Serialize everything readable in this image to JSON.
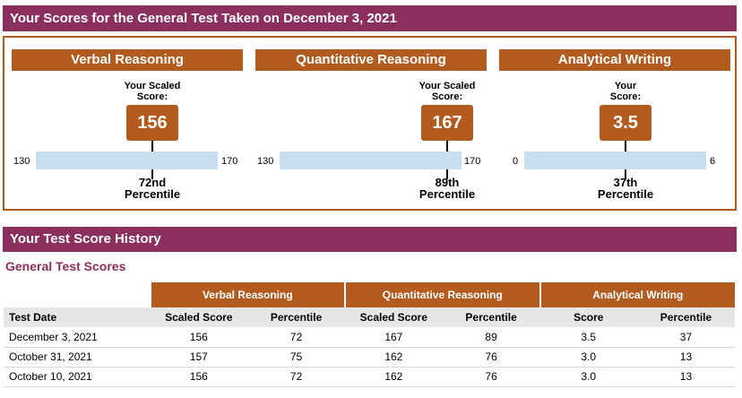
{
  "header": {
    "title": "Your Scores for the General Test Taken on December 3, 2021"
  },
  "sections": [
    {
      "name": "Verbal Reasoning",
      "score_label_line1": "Your Scaled",
      "score_label_line2": "Score:",
      "score": "156",
      "score_value": 156,
      "min": "130",
      "max": "170",
      "min_value": 130,
      "max_value": 170,
      "percentile_rank": "72nd",
      "percentile_word": "Percentile"
    },
    {
      "name": "Quantitative Reasoning",
      "score_label_line1": "Your Scaled",
      "score_label_line2": "Score:",
      "score": "167",
      "score_value": 167,
      "min": "130",
      "max": "170",
      "min_value": 130,
      "max_value": 170,
      "percentile_rank": "89th",
      "percentile_word": "Percentile"
    },
    {
      "name": "Analytical Writing",
      "score_label_line1": "Your",
      "score_label_line2": "Score:",
      "score": "3.5",
      "score_value": 3.5,
      "min": "0",
      "max": "6",
      "min_value": 0,
      "max_value": 6,
      "percentile_rank": "37th",
      "percentile_word": "Percentile"
    }
  ],
  "history": {
    "title": "Your Test Score History",
    "subtitle": "General Test Scores",
    "groups": [
      "Verbal Reasoning",
      "Quantitative Reasoning",
      "Analytical Writing"
    ],
    "columns": [
      "Test Date",
      "Scaled Score",
      "Percentile",
      "Scaled Score",
      "Percentile",
      "Score",
      "Percentile"
    ],
    "rows": [
      [
        "December 3, 2021",
        "156",
        "72",
        "167",
        "89",
        "3.5",
        "37"
      ],
      [
        "October 31, 2021",
        "157",
        "75",
        "162",
        "76",
        "3.0",
        "13"
      ],
      [
        "October 10, 2021",
        "156",
        "72",
        "162",
        "76",
        "3.0",
        "13"
      ]
    ]
  },
  "colors": {
    "banner": "#8b2f5e",
    "accent": "#b35a1f",
    "bar": "#c8dff0"
  }
}
